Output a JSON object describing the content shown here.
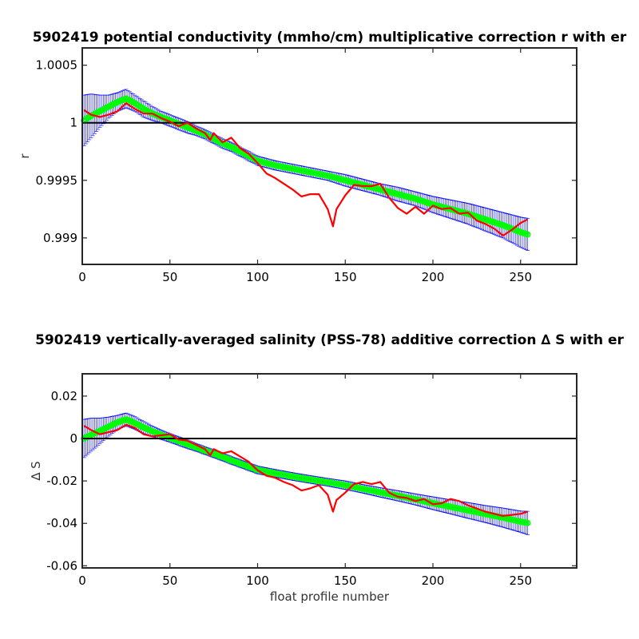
{
  "chart_data": [
    {
      "type": "line",
      "title": "5902419 potential conductivity (mmho/cm) multiplicative correction r with er",
      "xlabel": "",
      "ylabel": "r",
      "xlim": [
        0,
        282
      ],
      "ylim": [
        0.99877,
        1.00065
      ],
      "xticks": [
        0,
        50,
        100,
        150,
        200,
        250
      ],
      "xtick_labels": [
        "0",
        "50",
        "100",
        "150",
        "200",
        "250"
      ],
      "yticks": [
        0.999,
        0.9995,
        1,
        1.0005
      ],
      "ytick_labels": [
        "0.999",
        "0.9995",
        "1",
        "1.0005"
      ],
      "reference_line": 1,
      "grid": false,
      "colors": {
        "fit": "#00ff00",
        "error": "#0000ff",
        "measured": "#ff0000",
        "reference": "#000000"
      },
      "series": [
        {
          "role": "fit",
          "style": "green circles",
          "x": [
            1,
            5,
            10,
            15,
            20,
            25,
            30,
            35,
            40,
            45,
            50,
            55,
            60,
            65,
            70,
            75,
            80,
            85,
            90,
            95,
            100,
            110,
            120,
            130,
            140,
            150,
            160,
            170,
            180,
            190,
            200,
            210,
            220,
            230,
            240,
            250,
            254
          ],
          "values": [
            1.00002,
            1.00006,
            1.0001,
            1.00014,
            1.00018,
            1.00021,
            1.00017,
            1.00012,
            1.00008,
            1.00005,
            1.00002,
            0.99999,
            0.99996,
            0.99993,
            0.9999,
            0.99986,
            0.99982,
            0.99979,
            0.99975,
            0.99971,
            0.99967,
            0.99963,
            0.9996,
            0.99957,
            0.99954,
            0.9995,
            0.99946,
            0.99942,
            0.99938,
            0.99934,
            0.99929,
            0.99925,
            0.99921,
            0.99916,
            0.99911,
            0.99905,
            0.99903
          ]
        },
        {
          "role": "error",
          "style": "blue error bars",
          "x": [
            1,
            5,
            10,
            15,
            20,
            25,
            30,
            35,
            40,
            45,
            50,
            55,
            60,
            65,
            70,
            75,
            80,
            85,
            90,
            95,
            100,
            110,
            120,
            130,
            140,
            150,
            160,
            170,
            180,
            190,
            200,
            210,
            220,
            230,
            240,
            250,
            254
          ],
          "half_width": [
            0.00022,
            0.00019,
            0.00014,
            0.0001,
            8e-05,
            8e-05,
            7e-05,
            7e-05,
            6e-05,
            5e-05,
            5e-05,
            5e-05,
            5e-05,
            4e-05,
            4e-05,
            4e-05,
            4e-05,
            4e-05,
            4e-05,
            4e-05,
            4e-05,
            4e-05,
            4e-05,
            4e-05,
            4e-05,
            5e-05,
            5e-05,
            5e-05,
            6e-05,
            6e-05,
            7e-05,
            8e-05,
            9e-05,
            0.0001,
            0.00011,
            0.00013,
            0.00014
          ]
        },
        {
          "role": "measured",
          "style": "red line",
          "x": [
            1,
            5,
            10,
            15,
            20,
            25,
            30,
            35,
            40,
            45,
            50,
            55,
            60,
            65,
            70,
            73,
            75,
            80,
            85,
            90,
            95,
            100,
            105,
            110,
            115,
            120,
            125,
            130,
            135,
            140,
            143,
            145,
            150,
            155,
            160,
            165,
            170,
            175,
            180,
            185,
            190,
            195,
            200,
            205,
            210,
            215,
            220,
            225,
            230,
            235,
            240,
            245,
            250,
            254
          ],
          "values": [
            1.00011,
            1.00007,
            1.00005,
            1.00007,
            1.0001,
            1.00017,
            1.00012,
            1.00008,
            1.00008,
            1.00004,
            1.00001,
            0.99997,
            1.0,
            0.99995,
            0.99991,
            0.99985,
            0.99991,
            0.99983,
            0.99987,
            0.99978,
            0.99973,
            0.99965,
            0.99956,
            0.99952,
            0.99947,
            0.99942,
            0.99936,
            0.99938,
            0.99938,
            0.99925,
            0.9991,
            0.99925,
            0.99937,
            0.99946,
            0.99945,
            0.99945,
            0.99947,
            0.99935,
            0.99926,
            0.99921,
            0.99927,
            0.99921,
            0.99928,
            0.99925,
            0.99926,
            0.99921,
            0.99922,
            0.99915,
            0.99912,
            0.99908,
            0.99902,
            0.99907,
            0.99913,
            0.99916
          ]
        }
      ]
    },
    {
      "type": "line",
      "title": "5902419 vertically-averaged salinity (PSS-78) additive correction ∆ S with er",
      "xlabel": "float profile number",
      "ylabel": "∆ S",
      "xlim": [
        0,
        282
      ],
      "ylim": [
        -0.061,
        0.0305
      ],
      "xticks": [
        0,
        50,
        100,
        150,
        200,
        250
      ],
      "xtick_labels": [
        "0",
        "50",
        "100",
        "150",
        "200",
        "250"
      ],
      "yticks": [
        -0.06,
        -0.04,
        -0.02,
        0,
        0.02
      ],
      "ytick_labels": [
        "-0.06",
        "-0.04",
        "-0.02",
        "0",
        "0.02"
      ],
      "reference_line": 0,
      "grid": false,
      "colors": {
        "fit": "#00ff00",
        "error": "#0000ff",
        "measured": "#ff0000",
        "reference": "#000000"
      },
      "series": [
        {
          "role": "fit",
          "style": "green circles",
          "x": [
            1,
            5,
            10,
            15,
            20,
            25,
            30,
            35,
            40,
            45,
            50,
            55,
            60,
            65,
            70,
            75,
            80,
            85,
            90,
            95,
            100,
            110,
            120,
            130,
            140,
            150,
            160,
            170,
            180,
            190,
            200,
            210,
            220,
            230,
            240,
            250,
            254
          ],
          "values": [
            0.0,
            0.0018,
            0.0036,
            0.0056,
            0.0076,
            0.009,
            0.0073,
            0.0052,
            0.0034,
            0.0018,
            0.0003,
            -0.0012,
            -0.0027,
            -0.0042,
            -0.0057,
            -0.0072,
            -0.0087,
            -0.0103,
            -0.0118,
            -0.0133,
            -0.0148,
            -0.0164,
            -0.0179,
            -0.0193,
            -0.0206,
            -0.022,
            -0.0237,
            -0.0254,
            -0.027,
            -0.0287,
            -0.0305,
            -0.0322,
            -0.0339,
            -0.0356,
            -0.0373,
            -0.0392,
            -0.0398
          ]
        },
        {
          "role": "error",
          "style": "blue error bars",
          "x": [
            1,
            5,
            10,
            15,
            20,
            25,
            30,
            35,
            40,
            45,
            50,
            55,
            60,
            65,
            70,
            75,
            80,
            85,
            90,
            95,
            100,
            110,
            120,
            130,
            140,
            150,
            160,
            170,
            180,
            190,
            200,
            210,
            220,
            230,
            240,
            250,
            254
          ],
          "half_width": [
            0.009,
            0.0078,
            0.006,
            0.0045,
            0.0033,
            0.003,
            0.003,
            0.0028,
            0.0025,
            0.0022,
            0.002,
            0.002,
            0.002,
            0.0018,
            0.0018,
            0.0018,
            0.0018,
            0.0018,
            0.0018,
            0.0018,
            0.0018,
            0.0018,
            0.0018,
            0.0018,
            0.0018,
            0.002,
            0.002,
            0.0022,
            0.0024,
            0.0026,
            0.003,
            0.0033,
            0.0037,
            0.004,
            0.0045,
            0.005,
            0.0055
          ]
        },
        {
          "role": "measured",
          "style": "red line",
          "x": [
            1,
            5,
            10,
            15,
            20,
            25,
            30,
            35,
            40,
            45,
            50,
            55,
            60,
            65,
            70,
            73,
            75,
            80,
            85,
            90,
            95,
            100,
            105,
            110,
            115,
            120,
            125,
            130,
            135,
            140,
            143,
            145,
            150,
            155,
            160,
            165,
            170,
            175,
            180,
            185,
            190,
            195,
            200,
            205,
            210,
            215,
            220,
            225,
            230,
            235,
            240,
            245,
            250,
            254
          ],
          "values": [
            0.006,
            0.004,
            0.002,
            0.003,
            0.004,
            0.0065,
            0.005,
            0.002,
            0.001,
            0.0015,
            0.002,
            -0.0005,
            -0.001,
            -0.003,
            -0.005,
            -0.008,
            -0.005,
            -0.007,
            -0.006,
            -0.0085,
            -0.011,
            -0.015,
            -0.0175,
            -0.0185,
            -0.0205,
            -0.022,
            -0.0245,
            -0.0235,
            -0.022,
            -0.0265,
            -0.0345,
            -0.029,
            -0.0255,
            -0.0215,
            -0.0205,
            -0.0215,
            -0.0205,
            -0.0255,
            -0.0275,
            -0.028,
            -0.0295,
            -0.0285,
            -0.031,
            -0.0305,
            -0.0285,
            -0.0295,
            -0.0315,
            -0.033,
            -0.0345,
            -0.0355,
            -0.0365,
            -0.036,
            -0.0355,
            -0.0345
          ]
        }
      ]
    }
  ]
}
